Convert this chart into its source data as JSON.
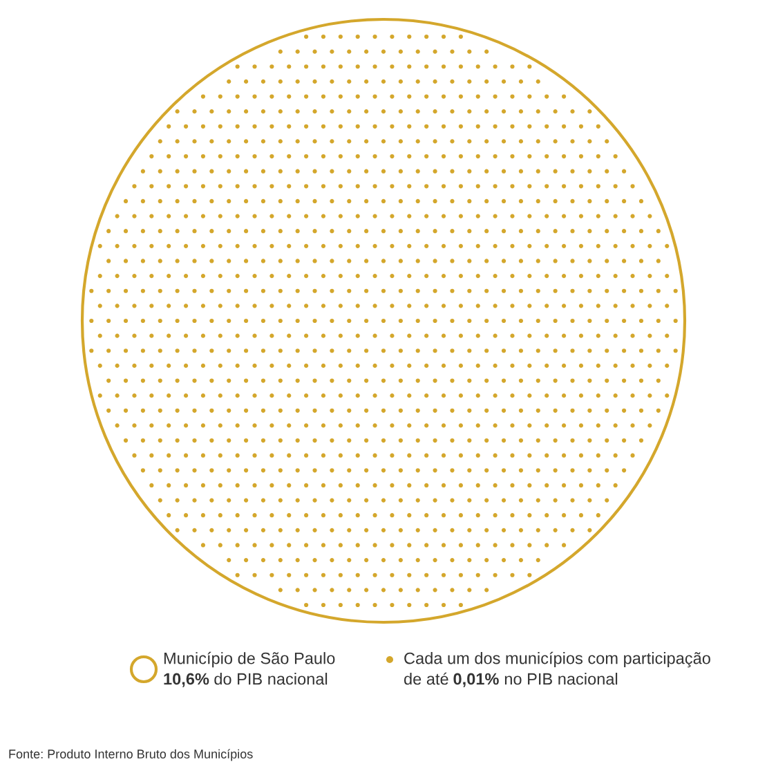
{
  "chart_data": {
    "type": "other",
    "categories": [
      "Município de São Paulo",
      "Cada um dos municípios com participação de até"
    ],
    "values": [
      10.6,
      0.01
    ],
    "value_labels": [
      "10,6%",
      "0,01%"
    ],
    "colors": [
      "#d4a72c",
      "#d4a72c"
    ],
    "annotations": [
      "do PIB nacional",
      "no PIB nacional",
      "Fonte: Produto Interno Bruto dos Municípios"
    ]
  }
}
